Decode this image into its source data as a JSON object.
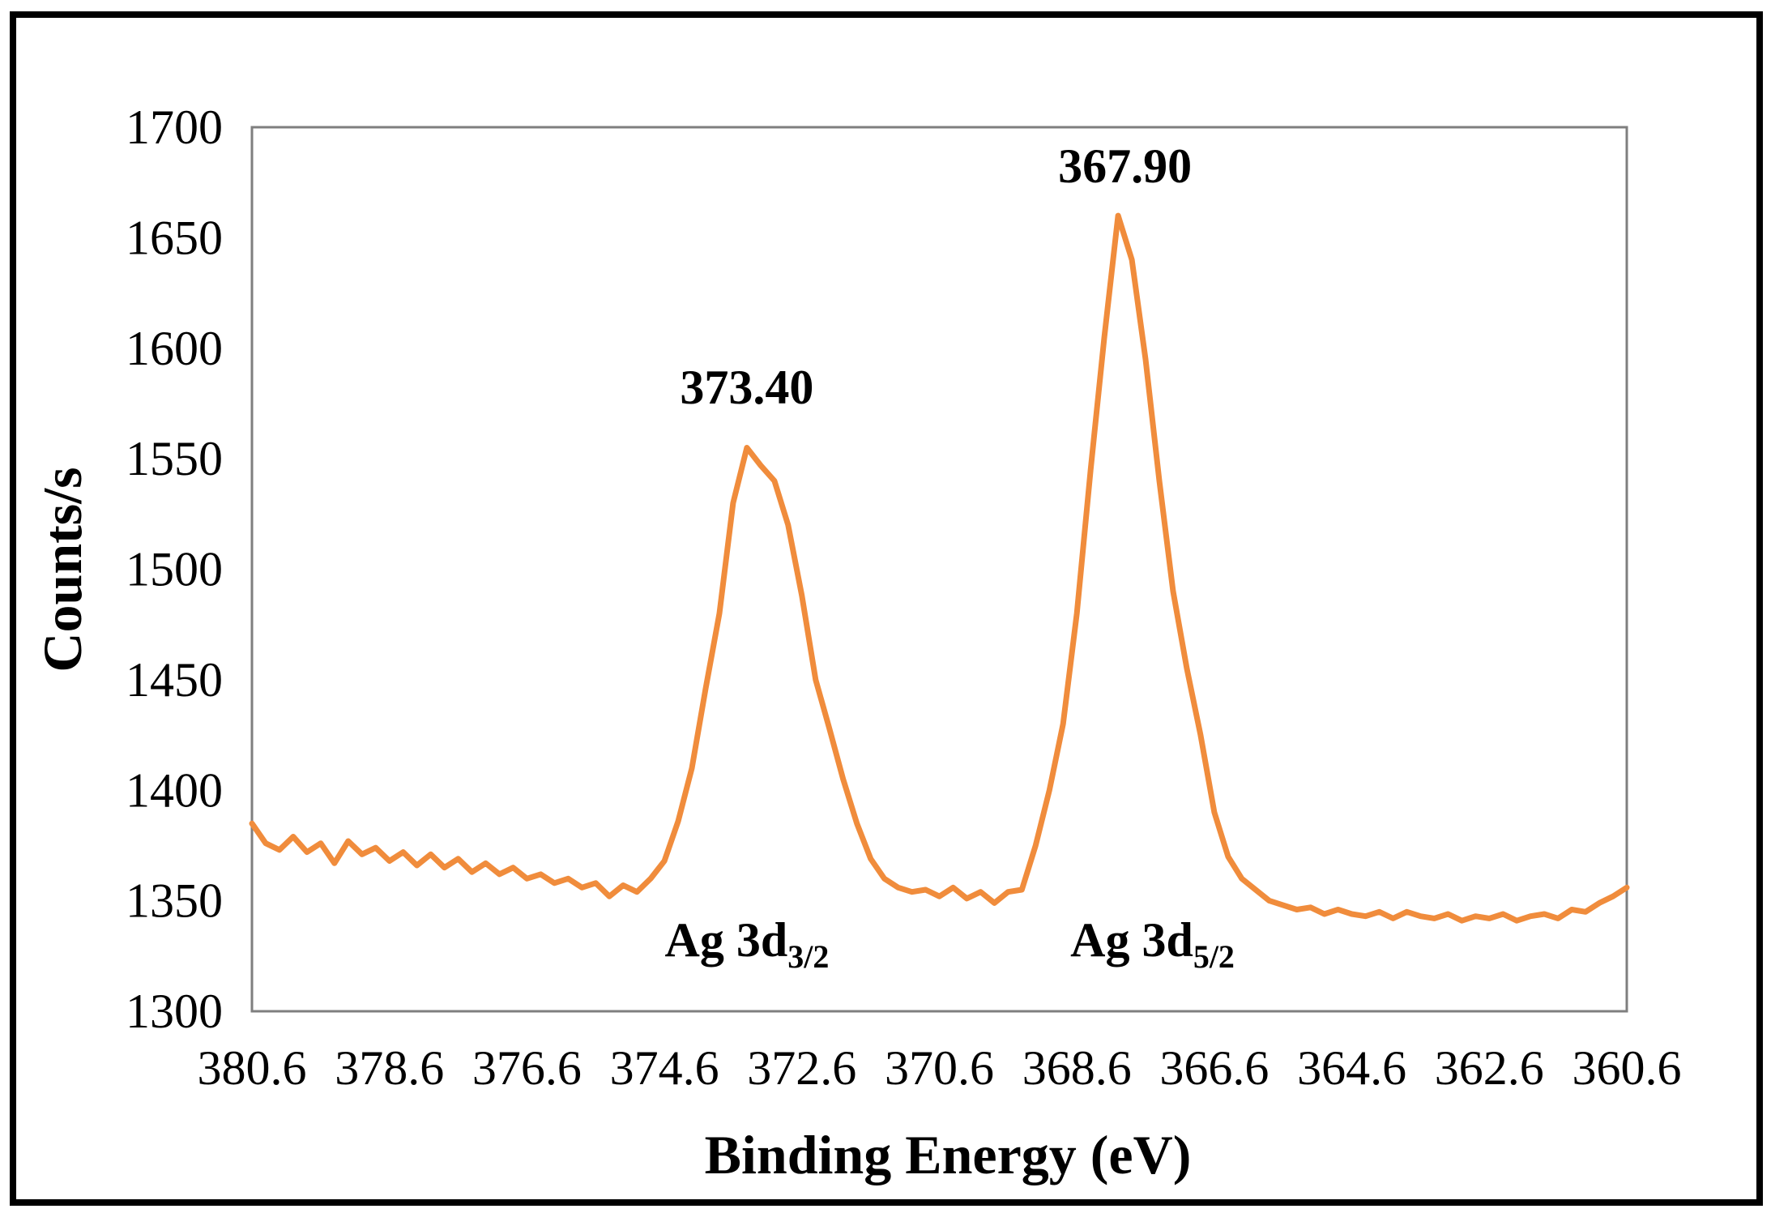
{
  "chart_data": {
    "type": "line",
    "title": "",
    "xlabel": "Binding Energy (eV)",
    "ylabel": "Counts/s",
    "xlim": [
      380.6,
      360.6
    ],
    "x_reversed": true,
    "ylim": [
      1300,
      1700
    ],
    "x_ticks": [
      "380.6",
      "378.6",
      "376.6",
      "374.6",
      "372.6",
      "370.6",
      "368.6",
      "366.6",
      "364.6",
      "362.6",
      "360.6"
    ],
    "y_ticks": [
      "1700",
      "1650",
      "1600",
      "1550",
      "1500",
      "1450",
      "1400",
      "1350",
      "1300"
    ],
    "grid": false,
    "legend": "none",
    "series": [
      {
        "name": "Ag 3d",
        "color": "#F08C3C",
        "x": [
          380.6,
          380.4,
          380.2,
          380.0,
          379.8,
          379.6,
          379.4,
          379.2,
          379.0,
          378.8,
          378.6,
          378.4,
          378.2,
          378.0,
          377.8,
          377.6,
          377.4,
          377.2,
          377.0,
          376.8,
          376.6,
          376.4,
          376.2,
          376.0,
          375.8,
          375.6,
          375.4,
          375.2,
          375.0,
          374.8,
          374.6,
          374.4,
          374.2,
          374.0,
          373.8,
          373.6,
          373.4,
          373.2,
          373.0,
          372.8,
          372.6,
          372.4,
          372.2,
          372.0,
          371.8,
          371.6,
          371.4,
          371.2,
          371.0,
          370.8,
          370.6,
          370.4,
          370.2,
          370.0,
          369.8,
          369.6,
          369.4,
          369.2,
          369.0,
          368.8,
          368.6,
          368.4,
          368.2,
          368.0,
          367.8,
          367.6,
          367.4,
          367.2,
          367.0,
          366.8,
          366.6,
          366.4,
          366.2,
          366.0,
          365.8,
          365.6,
          365.4,
          365.2,
          365.0,
          364.8,
          364.6,
          364.4,
          364.2,
          364.0,
          363.8,
          363.6,
          363.4,
          363.2,
          363.0,
          362.8,
          362.6,
          362.4,
          362.2,
          362.0,
          361.8,
          361.6,
          361.4,
          361.2,
          361.0,
          360.8,
          360.6
        ],
        "y": [
          1385,
          1376,
          1373,
          1379,
          1372,
          1376,
          1367,
          1377,
          1371,
          1374,
          1368,
          1372,
          1366,
          1371,
          1365,
          1369,
          1363,
          1367,
          1362,
          1365,
          1360,
          1362,
          1358,
          1360,
          1356,
          1358,
          1352,
          1357,
          1354,
          1360,
          1368,
          1386,
          1410,
          1446,
          1480,
          1530,
          1555,
          1547,
          1540,
          1520,
          1488,
          1450,
          1428,
          1405,
          1385,
          1369,
          1360,
          1356,
          1354,
          1355,
          1352,
          1356,
          1351,
          1354,
          1349,
          1354,
          1355,
          1375,
          1400,
          1430,
          1480,
          1545,
          1605,
          1660,
          1640,
          1595,
          1540,
          1490,
          1455,
          1425,
          1390,
          1370,
          1360,
          1355,
          1350,
          1348,
          1346,
          1347,
          1344,
          1346,
          1344,
          1343,
          1345,
          1342,
          1345,
          1343,
          1342,
          1344,
          1341,
          1343,
          1342,
          1344,
          1341,
          1343,
          1344,
          1342,
          1346,
          1345,
          1349,
          1352,
          1356
        ]
      }
    ],
    "annotations": [
      {
        "text": "373.40",
        "x": 373.4,
        "y": 1575
      },
      {
        "text": "367.90",
        "x": 367.9,
        "y": 1675
      }
    ],
    "peak_labels": [
      {
        "main": "Ag 3d",
        "sub": "3/2",
        "x": 373.4,
        "y": 1325
      },
      {
        "main": "Ag 3d",
        "sub": "5/2",
        "x": 367.5,
        "y": 1325
      }
    ]
  }
}
